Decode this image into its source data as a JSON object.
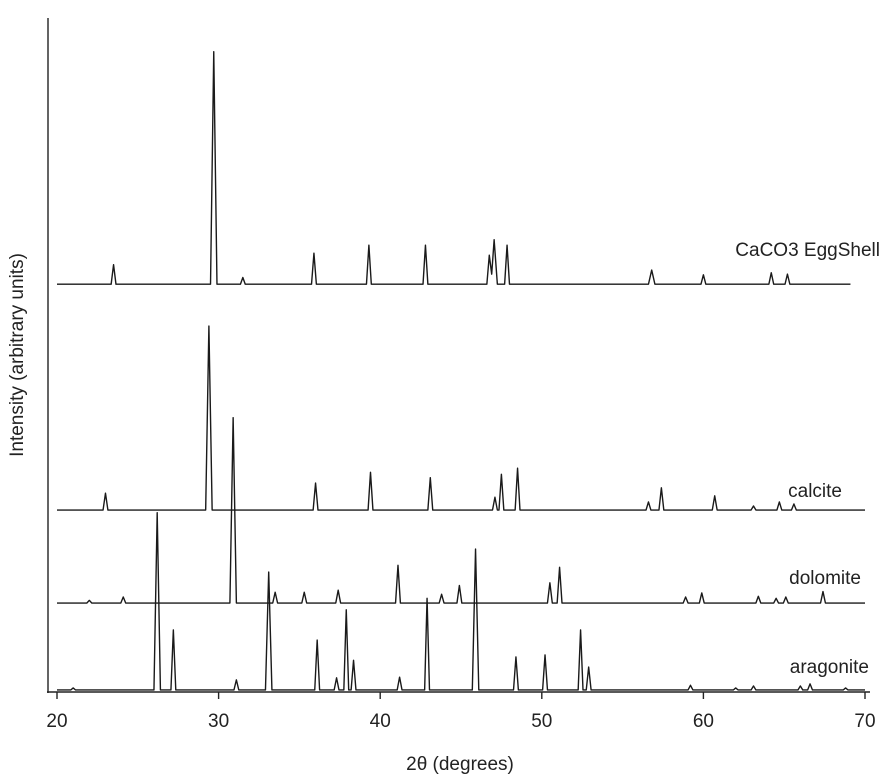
{
  "chart_data": {
    "type": "line",
    "xlabel": "2θ (degrees)",
    "ylabel": "Intensity (arbitrary units)",
    "xlim": [
      20,
      70
    ],
    "xticks": [
      20,
      30,
      40,
      50,
      60,
      70
    ],
    "ylim": [
      0,
      100
    ],
    "series": [
      {
        "name": "CaCO3 EggShell",
        "color": "#1a1a1a",
        "x": [
          20,
          23.35,
          23.5,
          23.65,
          29.5,
          29.7,
          29.9,
          31.35,
          31.5,
          31.65,
          35.75,
          35.9,
          36.05,
          39.15,
          39.3,
          39.45,
          42.65,
          42.8,
          42.95,
          46.6,
          46.75,
          46.9,
          47.05,
          47.25,
          47.7,
          47.85,
          48.0,
          56.6,
          56.8,
          57.0,
          59.85,
          60.0,
          60.15,
          64.05,
          64.2,
          64.35,
          65.05,
          65.2,
          65.35,
          69.1
        ],
        "values": [
          60.5,
          60.5,
          63.4,
          60.5,
          60.5,
          95.0,
          60.5,
          60.5,
          61.5,
          60.5,
          60.5,
          65.1,
          60.5,
          60.5,
          66.3,
          60.5,
          60.5,
          66.3,
          60.5,
          60.5,
          64.8,
          62,
          67.1,
          60.5,
          60.5,
          66.3,
          60.5,
          60.5,
          62.6,
          60.5,
          60.5,
          61.9,
          60.5,
          60.5,
          62.2,
          60.5,
          60.5,
          62.0,
          60.5,
          60.5
        ]
      },
      {
        "name": "calcite",
        "color": "#1a1a1a",
        "x": [
          20,
          22.85,
          23.0,
          23.15,
          29.2,
          29.4,
          29.6,
          35.85,
          36.0,
          36.15,
          39.25,
          39.4,
          39.55,
          42.95,
          43.1,
          43.25,
          46.95,
          47.1,
          47.25,
          47.35,
          47.5,
          47.65,
          48.35,
          48.5,
          48.65,
          56.45,
          56.6,
          56.75,
          57.25,
          57.4,
          57.55,
          60.55,
          60.7,
          60.85,
          62.95,
          63.1,
          63.25,
          64.55,
          64.7,
          64.85,
          65.45,
          65.6,
          65.75,
          70
        ],
        "values": [
          27,
          27,
          29.5,
          27,
          27,
          54.3,
          27,
          27,
          31.0,
          27,
          27,
          32.6,
          27,
          27,
          31.8,
          27,
          27,
          28.9,
          27,
          27,
          32.3,
          27,
          27,
          33.2,
          27,
          27,
          28.2,
          27,
          27,
          30.3,
          27,
          27,
          29.1,
          27,
          27,
          27.6,
          27,
          27,
          28.2,
          27,
          27,
          27.9,
          27,
          27
        ]
      },
      {
        "name": "dolomite",
        "color": "#1a1a1a",
        "x": [
          20,
          21.85,
          22.0,
          22.15,
          23.95,
          24.1,
          24.25,
          30.7,
          30.9,
          31.1,
          33.35,
          33.5,
          33.65,
          35.15,
          35.3,
          35.45,
          37.25,
          37.4,
          37.55,
          40.95,
          41.1,
          41.25,
          43.65,
          43.8,
          43.95,
          44.75,
          44.9,
          45.05,
          50.35,
          50.5,
          50.65,
          50.95,
          51.1,
          51.25,
          58.75,
          58.9,
          59.05,
          59.75,
          59.9,
          60.05,
          63.25,
          63.4,
          63.55,
          64.35,
          64.5,
          64.65,
          64.95,
          65.1,
          65.25,
          67.25,
          67.4,
          67.55,
          70
        ],
        "values": [
          13.2,
          13.2,
          13.6,
          13.2,
          13.2,
          14.1,
          13.2,
          13.2,
          40.7,
          13.2,
          13.2,
          14.8,
          13.2,
          13.2,
          14.8,
          13.2,
          13.2,
          15.1,
          13.2,
          13.2,
          18.8,
          13.2,
          13.2,
          14.5,
          13.2,
          13.2,
          15.8,
          13.2,
          13.2,
          16.2,
          13.2,
          13.2,
          18.5,
          13.2,
          13.2,
          14.1,
          13.2,
          13.2,
          14.7,
          13.2,
          13.2,
          14.2,
          13.2,
          13.2,
          13.9,
          13.2,
          13.2,
          14.1,
          13.2,
          13.2,
          14.9,
          13.2,
          13.2
        ]
      },
      {
        "name": "aragonite",
        "color": "#1a1a1a",
        "x": [
          20,
          20.85,
          21.0,
          21.15,
          26.0,
          26.2,
          26.4,
          27.05,
          27.2,
          27.35,
          30.95,
          31.1,
          31.25,
          32.9,
          33.1,
          33.3,
          35.95,
          36.1,
          36.25,
          37.15,
          37.3,
          37.45,
          37.75,
          37.9,
          38.05,
          38.2,
          38.35,
          38.5,
          41.05,
          41.2,
          41.35,
          42.75,
          42.9,
          43.05,
          45.7,
          45.9,
          46.1,
          48.25,
          48.4,
          48.55,
          50.05,
          50.2,
          50.35,
          52.25,
          52.4,
          52.55,
          52.75,
          52.9,
          53.05,
          59.05,
          59.2,
          59.35,
          61.85,
          62.0,
          62.15,
          62.95,
          63.1,
          63.25,
          65.85,
          66.0,
          66.15,
          66.45,
          66.6,
          66.75,
          68.65,
          68.8,
          68.95,
          70
        ],
        "values": [
          0.3,
          0.3,
          0.6,
          0.3,
          0.3,
          26.6,
          0.3,
          0.3,
          9.2,
          0.3,
          0.3,
          1.8,
          0.3,
          0.3,
          17.8,
          0.3,
          0.3,
          7.7,
          0.3,
          0.3,
          2.1,
          0.3,
          0.3,
          12.2,
          0.3,
          0.3,
          4.7,
          0.3,
          0.3,
          2.2,
          0.3,
          0.3,
          13.9,
          0.3,
          0.3,
          21.2,
          0.3,
          0.3,
          5.2,
          0.3,
          0.3,
          5.5,
          0.3,
          0.3,
          9.2,
          0.3,
          0.3,
          3.7,
          0.3,
          0.3,
          1.0,
          0.3,
          0.3,
          0.6,
          0.3,
          0.3,
          0.9,
          0.3,
          0.3,
          0.9,
          0.3,
          0.3,
          1.2,
          0.3,
          0.3,
          0.6,
          0.3,
          0.3
        ]
      }
    ]
  }
}
